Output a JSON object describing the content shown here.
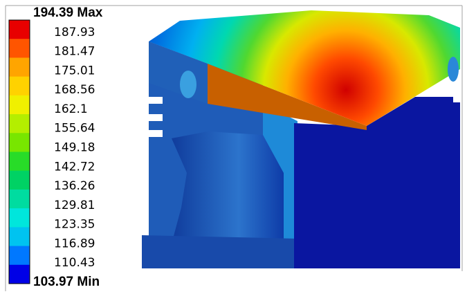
{
  "legend": {
    "labels": [
      "194.39 Max",
      "187.93",
      "181.47",
      "175.01",
      "168.56",
      "162.1",
      "155.64",
      "149.18",
      "142.72",
      "136.26",
      "129.81",
      "123.35",
      "116.89",
      "110.43",
      "103.97 Min"
    ],
    "colors": [
      "#e80000",
      "#ff5500",
      "#ffa500",
      "#ffd200",
      "#f0f000",
      "#b4ee00",
      "#78e600",
      "#28dc28",
      "#00d264",
      "#00dca0",
      "#00e6dc",
      "#00c3f0",
      "#0078ff",
      "#0000e6"
    ]
  }
}
